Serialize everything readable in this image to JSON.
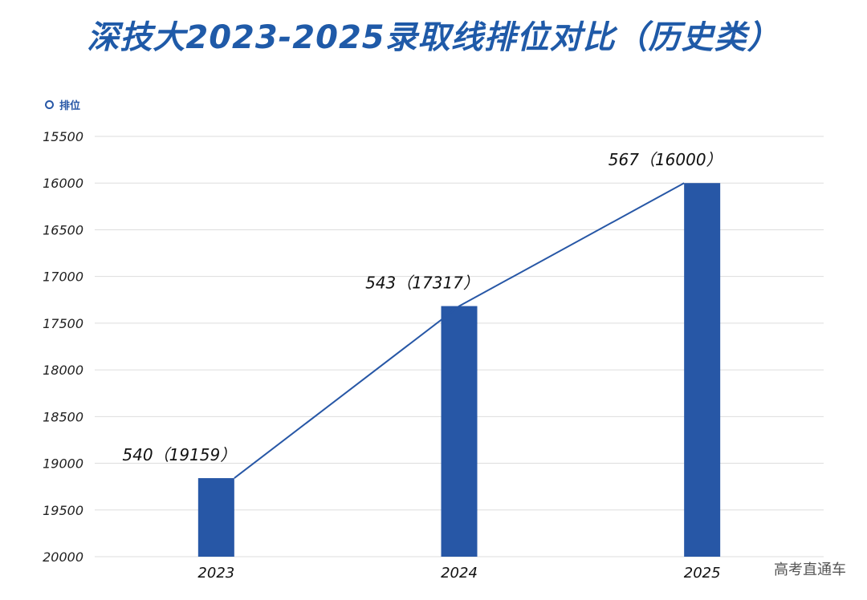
{
  "colors": {
    "title": "#1f5aa8",
    "bar": "#2757a6",
    "line": "#2757a6",
    "grid": "#dddddd",
    "legend": "#2757a6"
  },
  "watermark": "高考直通车",
  "chart_data": {
    "type": "bar",
    "title": "深技大2023-2025录取线排位对比（历史类）",
    "legend": [
      "排位"
    ],
    "xlabel": "",
    "ylabel": "",
    "y_inverted": true,
    "ylim": [
      15500,
      20000
    ],
    "y_ticks": [
      15500,
      16000,
      16500,
      17000,
      17500,
      18000,
      18500,
      19000,
      19500,
      20000
    ],
    "y_tick_labels": [
      "15500",
      "16000",
      "16500",
      "17000",
      "17500",
      "18000",
      "18500",
      "19000",
      "19500",
      "20000"
    ],
    "categories": [
      "2023",
      "2024",
      "2025"
    ],
    "series": [
      {
        "name": "排位",
        "values": [
          19159,
          17317,
          16000
        ],
        "scores": [
          540,
          543,
          567
        ],
        "labels": [
          "540（19159）",
          "543（17317）",
          "567（16000）"
        ]
      }
    ],
    "overlay_line": true,
    "grid": true
  }
}
